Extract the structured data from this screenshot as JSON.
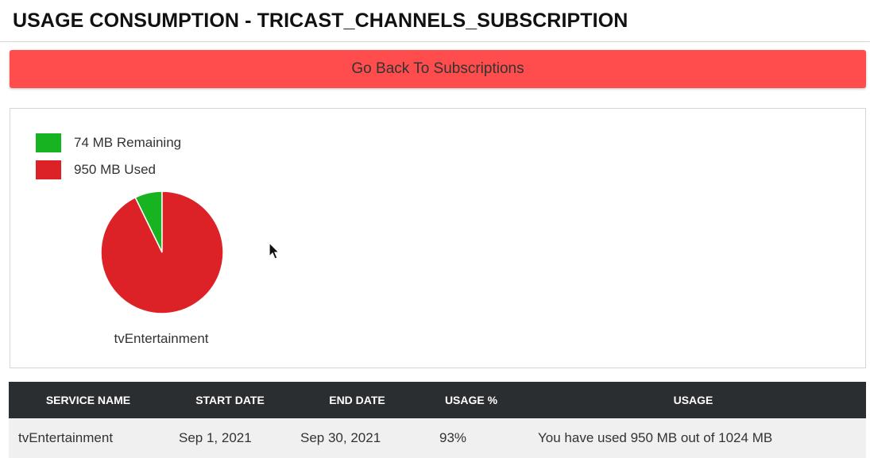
{
  "header": {
    "title": "USAGE CONSUMPTION - TRICAST_CHANNELS_SUBSCRIPTION"
  },
  "back_button": {
    "label": "Go Back To Subscriptions"
  },
  "colors": {
    "accent_button": "#ff4d4d",
    "remaining": "#17b321",
    "used": "#dd2227",
    "table_header": "#2b2e31"
  },
  "chart_data": {
    "type": "pie",
    "title": "tvEntertainment",
    "slices": [
      {
        "label": "74 MB Remaining",
        "value": 74,
        "color": "#17b321"
      },
      {
        "label": "950 MB Used",
        "value": 950,
        "color": "#dd2227"
      }
    ],
    "legend_position": "top-left"
  },
  "table": {
    "columns": [
      "SERVICE NAME",
      "START DATE",
      "END DATE",
      "USAGE %",
      "USAGE"
    ],
    "rows": [
      {
        "service_name": "tvEntertainment",
        "start_date": "Sep 1, 2021",
        "end_date": "Sep 30, 2021",
        "usage_percent": "93%",
        "usage": "You have used 950 MB out of 1024 MB"
      }
    ]
  }
}
